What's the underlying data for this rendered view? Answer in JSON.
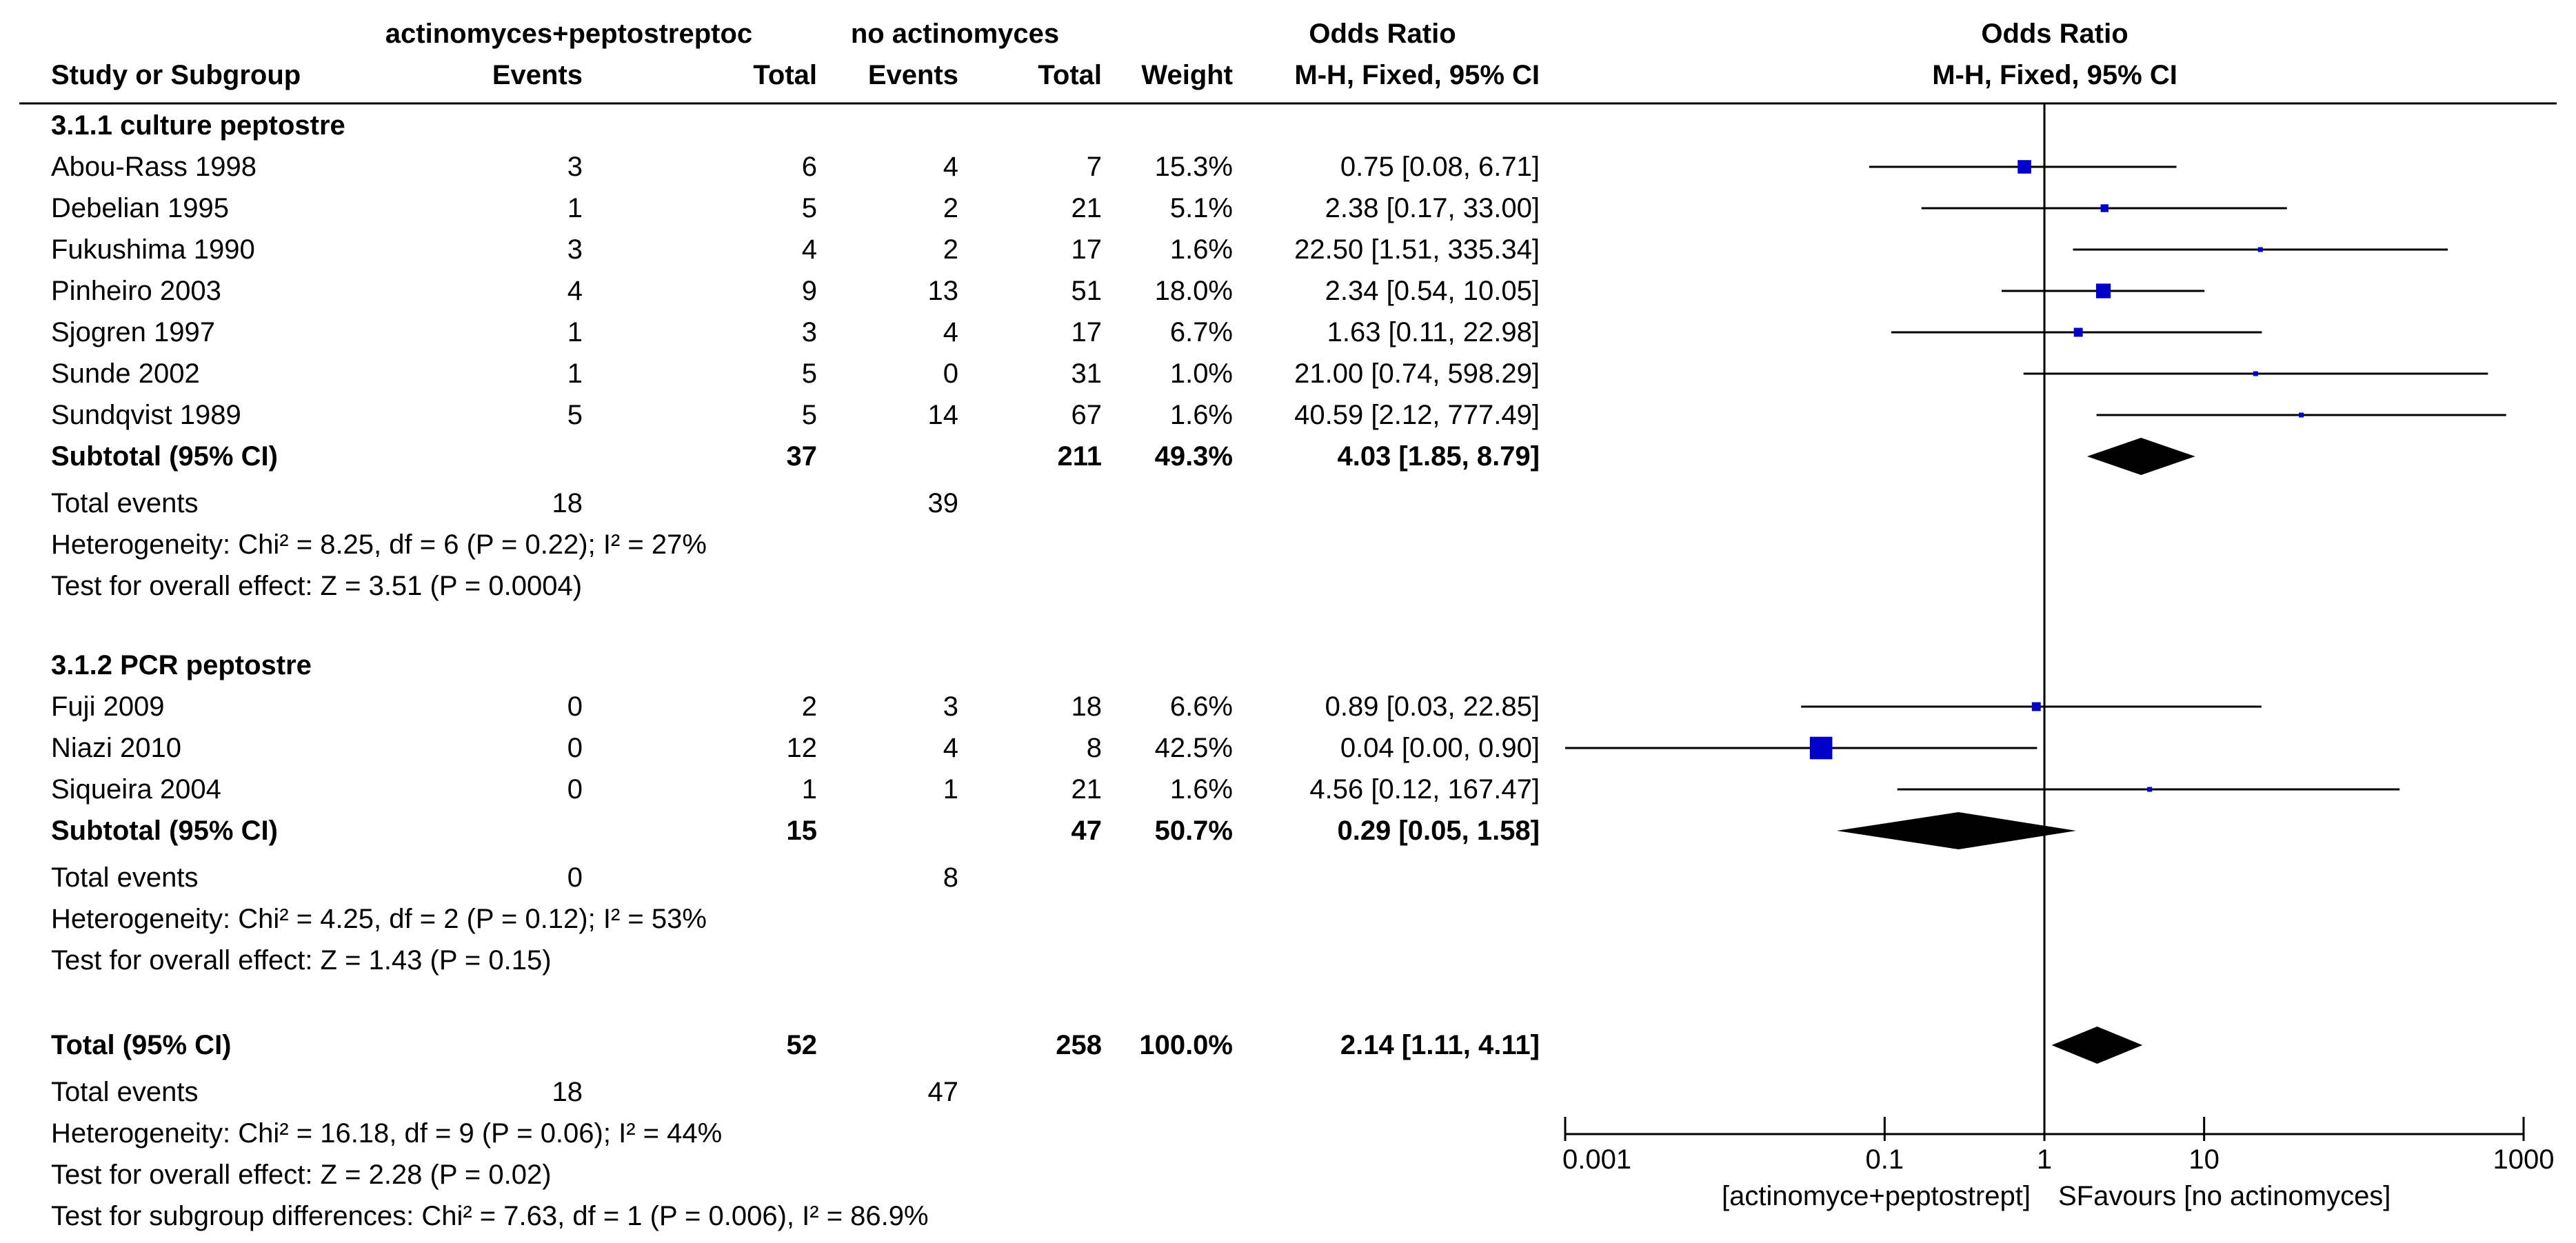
{
  "chart_data": {
    "type": "forest",
    "headers": {
      "group1_name": "actinomyces+peptostreptoc",
      "group2_name": "no actinomyces",
      "or_title": "Odds Ratio",
      "study": "Study or Subgroup",
      "events": "Events",
      "total": "Total",
      "weight": "Weight",
      "or_method": "M-H, Fixed, 95% CI",
      "plot_title": "Odds Ratio",
      "plot_method": "M-H, Fixed, 95% CI"
    },
    "subgroups": [
      {
        "name": "3.1.1 culture peptostre",
        "studies": [
          {
            "name": "Abou-Rass 1998",
            "e1": "3",
            "t1": "6",
            "e2": "4",
            "t2": "7",
            "weight": "15.3%",
            "ci_text": "0.75 [0.08, 6.71]",
            "or": 0.75,
            "lo": 0.08,
            "hi": 6.71
          },
          {
            "name": "Debelian 1995",
            "e1": "1",
            "t1": "5",
            "e2": "2",
            "t2": "21",
            "weight": "5.1%",
            "ci_text": "2.38 [0.17, 33.00]",
            "or": 2.38,
            "lo": 0.17,
            "hi": 33.0
          },
          {
            "name": "Fukushima 1990",
            "e1": "3",
            "t1": "4",
            "e2": "2",
            "t2": "17",
            "weight": "1.6%",
            "ci_text": "22.50 [1.51, 335.34]",
            "or": 22.5,
            "lo": 1.51,
            "hi": 335.34
          },
          {
            "name": "Pinheiro  2003",
            "e1": "4",
            "t1": "9",
            "e2": "13",
            "t2": "51",
            "weight": "18.0%",
            "ci_text": "2.34 [0.54, 10.05]",
            "or": 2.34,
            "lo": 0.54,
            "hi": 10.05
          },
          {
            "name": "Sjogren 1997",
            "e1": "1",
            "t1": "3",
            "e2": "4",
            "t2": "17",
            "weight": "6.7%",
            "ci_text": "1.63 [0.11, 22.98]",
            "or": 1.63,
            "lo": 0.11,
            "hi": 22.98
          },
          {
            "name": "Sunde 2002",
            "e1": "1",
            "t1": "5",
            "e2": "0",
            "t2": "31",
            "weight": "1.0%",
            "ci_text": "21.00 [0.74, 598.29]",
            "or": 21.0,
            "lo": 0.74,
            "hi": 598.29
          },
          {
            "name": "Sundqvist 1989",
            "e1": "5",
            "t1": "5",
            "e2": "14",
            "t2": "67",
            "weight": "1.6%",
            "ci_text": "40.59 [2.12, 777.49]",
            "or": 40.59,
            "lo": 2.12,
            "hi": 777.49
          }
        ],
        "subtotal": {
          "label": "Subtotal (95% CI)",
          "t1": "37",
          "t2": "211",
          "weight": "49.3%",
          "ci_text": "4.03 [1.85, 8.79]",
          "or": 4.03,
          "lo": 1.85,
          "hi": 8.79
        },
        "stats": [
          {
            "label": "Total events",
            "e1": "18",
            "e2": "39"
          },
          {
            "label": "Heterogeneity: Chi² = 8.25, df = 6 (P = 0.22); I² = 27%"
          },
          {
            "label": "Test for overall effect: Z = 3.51 (P = 0.0004)"
          }
        ]
      },
      {
        "name": "3.1.2 PCR peptostre",
        "studies": [
          {
            "name": "Fuji 2009",
            "e1": "0",
            "t1": "2",
            "e2": "3",
            "t2": "18",
            "weight": "6.6%",
            "ci_text": "0.89 [0.03, 22.85]",
            "or": 0.89,
            "lo": 0.03,
            "hi": 22.85
          },
          {
            "name": "Niazi  2010",
            "e1": "0",
            "t1": "12",
            "e2": "4",
            "t2": "8",
            "weight": "42.5%",
            "ci_text": "0.04 [0.00, 0.90]",
            "or": 0.04,
            "lo": 0.001,
            "hi": 0.9
          },
          {
            "name": "Siqueira 2004",
            "e1": "0",
            "t1": "1",
            "e2": "1",
            "t2": "21",
            "weight": "1.6%",
            "ci_text": "4.56 [0.12, 167.47]",
            "or": 4.56,
            "lo": 0.12,
            "hi": 167.47
          }
        ],
        "subtotal": {
          "label": "Subtotal (95% CI)",
          "t1": "15",
          "t2": "47",
          "weight": "50.7%",
          "ci_text": "0.29 [0.05, 1.58]",
          "or": 0.29,
          "lo": 0.05,
          "hi": 1.58
        },
        "stats": [
          {
            "label": "Total events",
            "e1": "0",
            "e2": "8"
          },
          {
            "label": "Heterogeneity: Chi² = 4.25, df = 2 (P = 0.12); I² = 53%"
          },
          {
            "label": "Test for overall effect: Z = 1.43 (P = 0.15)"
          }
        ]
      }
    ],
    "total": {
      "label": "Total (95% CI)",
      "t1": "52",
      "t2": "258",
      "weight": "100.0%",
      "ci_text": "2.14 [1.11, 4.11]",
      "or": 2.14,
      "lo": 1.11,
      "hi": 4.11
    },
    "total_stats": [
      {
        "label": "Total events",
        "e1": "18",
        "e2": "47"
      },
      {
        "label": "Heterogeneity: Chi² = 16.18, df = 9 (P = 0.06); I² = 44%"
      },
      {
        "label": "Test for overall effect: Z = 2.28 (P = 0.02)"
      },
      {
        "label": "Test for subgroup differences: Chi² = 7.63, df = 1 (P = 0.006), I² = 86.9%"
      }
    ],
    "x_axis": {
      "scale": "log",
      "range": [
        0.001,
        1000
      ],
      "ticks": [
        {
          "value": 0.001,
          "label": "0.001"
        },
        {
          "value": 0.1,
          "label": "0.1"
        },
        {
          "value": 1,
          "label": "1"
        },
        {
          "value": 10,
          "label": "10"
        },
        {
          "value": 1000,
          "label": "1000"
        }
      ],
      "label_left": "[actinomyce+peptostrept]",
      "label_right": "SFavours [no actinomyces]"
    },
    "colors": {
      "square": "#0000c8",
      "diamond": "#000000",
      "line": "#000000"
    }
  }
}
